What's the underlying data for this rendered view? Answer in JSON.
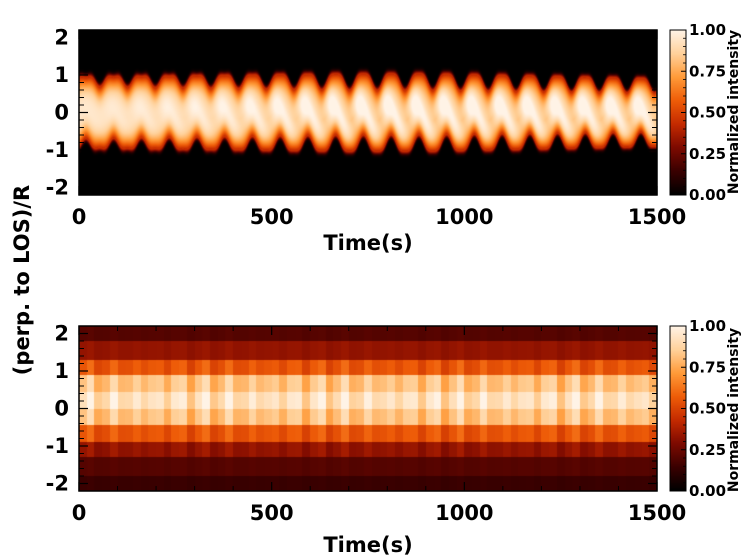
{
  "chart_data": [
    {
      "type": "heatmap",
      "panel": "top",
      "xlabel": "Time(s)",
      "ylabel": "(perp. to LOS)/R",
      "xlim": [
        0,
        1500
      ],
      "ylim": [
        -2.2,
        2.2
      ],
      "x_ticks": [
        0,
        500,
        1000,
        1500
      ],
      "x_tick_labels": [
        "0",
        "500",
        "1000",
        "1500"
      ],
      "y_ticks": [
        -2,
        -1,
        0,
        1,
        2
      ],
      "y_tick_labels": [
        "-2",
        "-1",
        "0",
        "1",
        "2"
      ],
      "colorbar": {
        "label": "Normalized intensity",
        "range": [
          0,
          1
        ],
        "ticks": [
          0,
          0.25,
          0.5,
          0.75,
          1.0
        ],
        "tick_labels": [
          "0.00",
          "0.25",
          "0.50",
          "0.75",
          "1.00"
        ]
      },
      "colormap": [
        "#000000",
        "#3a0000",
        "#7d0a00",
        "#c42a00",
        "#ee5c08",
        "#ff9a38",
        "#ffd19a",
        "#fff3e6"
      ],
      "pattern": {
        "kind": "oscillating_tube",
        "base_half_width": 0.85,
        "oscillation_period_s": 72,
        "oscillation_amplitude_start": 0.12,
        "oscillation_amplitude_mid": 0.22,
        "center_peak": 0.95
      }
    },
    {
      "type": "heatmap",
      "panel": "bottom",
      "xlabel": "Time(s)",
      "ylabel": "(perp. to LOS)/R",
      "xlim": [
        0,
        1500
      ],
      "ylim": [
        -2.2,
        2.2
      ],
      "x_ticks": [
        0,
        500,
        1000,
        1500
      ],
      "x_tick_labels": [
        "0",
        "500",
        "1000",
        "1500"
      ],
      "y_ticks": [
        -2,
        -1,
        0,
        1,
        2
      ],
      "y_tick_labels": [
        "-2",
        "-1",
        "0",
        "1",
        "2"
      ],
      "colorbar": {
        "label": "Normalized intensity",
        "range": [
          0,
          1
        ],
        "ticks": [
          0,
          0.25,
          0.5,
          0.75,
          1.0
        ],
        "tick_labels": [
          "0.00",
          "0.25",
          "0.50",
          "0.75",
          "1.00"
        ]
      },
      "colormap": [
        "#000000",
        "#3a0000",
        "#7d0a00",
        "#c42a00",
        "#ee5c08",
        "#ff9a38",
        "#ffd19a",
        "#fff3e6"
      ],
      "pattern": {
        "kind": "pixelated_bands",
        "row_edges": [
          -2.2,
          -1.8,
          -1.3,
          -0.9,
          -0.45,
          0.0,
          0.45,
          0.9,
          1.3,
          1.8,
          2.2
        ],
        "row_intensity": [
          0.14,
          0.2,
          0.33,
          0.55,
          0.82,
          0.92,
          0.82,
          0.55,
          0.33,
          0.2,
          0.14
        ],
        "time_modulation_period_s": 60,
        "time_modulation_amplitude": 0.08
      }
    }
  ]
}
